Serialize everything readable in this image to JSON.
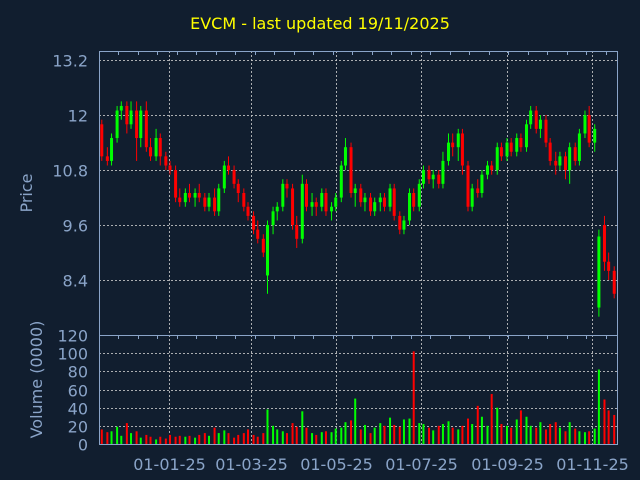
{
  "chart_data": {
    "type": "candlestick",
    "title": "EVCM - last updated 19/11/2025",
    "price_panel": {
      "ylabel": "Price",
      "yticks": [
        "13.2",
        "12",
        "10.8",
        "9.6",
        "8.4"
      ],
      "ylim": [
        7.2,
        13.4
      ],
      "grid": true
    },
    "volume_panel": {
      "ylabel": "Volume (0000)",
      "yticks": [
        "120",
        "100",
        "80",
        "60",
        "40",
        "20",
        "0"
      ],
      "ylim": [
        0,
        120
      ],
      "grid": true
    },
    "xlim": [
      "2024-11-12",
      "2025-11-19"
    ],
    "xticks": [
      {
        "date": "2025-01-01",
        "label": "01-01-25"
      },
      {
        "date": "2025-03-01",
        "label": "01-03-25"
      },
      {
        "date": "2025-05-01",
        "label": "01-05-25"
      },
      {
        "date": "2025-07-01",
        "label": "01-07-25"
      },
      {
        "date": "2025-09-01",
        "label": "01-09-25"
      },
      {
        "date": "2025-11-01",
        "label": "01-11-25"
      }
    ],
    "colors": {
      "up": "#00ff00",
      "down": "#ff0000",
      "background": "#111e2f",
      "axis": "#8aa4c8",
      "grid": "#c8c8c8",
      "title": "#ffff00"
    },
    "columns": [
      "date",
      "open",
      "high",
      "low",
      "close",
      "volume"
    ],
    "candles": [
      [
        "2024-11-14",
        11.8,
        11.9,
        11.0,
        11.1,
        16
      ],
      [
        "2024-11-18",
        11.1,
        11.3,
        10.9,
        11.0,
        13
      ],
      [
        "2024-11-21",
        11.0,
        11.6,
        10.9,
        11.5,
        14
      ],
      [
        "2024-11-25",
        11.5,
        12.2,
        11.4,
        12.1,
        19
      ],
      [
        "2024-11-28",
        12.1,
        12.3,
        11.9,
        12.2,
        9
      ],
      [
        "2024-12-02",
        12.2,
        12.3,
        11.6,
        11.8,
        23
      ],
      [
        "2024-12-05",
        11.8,
        12.3,
        11.7,
        12.1,
        12
      ],
      [
        "2024-12-09",
        12.1,
        12.3,
        11.0,
        11.5,
        14
      ],
      [
        "2024-12-12",
        11.5,
        12.2,
        11.3,
        12.1,
        7
      ],
      [
        "2024-12-16",
        12.1,
        12.3,
        11.2,
        11.3,
        10
      ],
      [
        "2024-12-19",
        11.3,
        11.5,
        11.0,
        11.1,
        8
      ],
      [
        "2024-12-23",
        11.1,
        11.7,
        11.0,
        11.5,
        5
      ],
      [
        "2024-12-26",
        11.5,
        11.6,
        10.9,
        11.1,
        8
      ],
      [
        "2024-12-30",
        11.1,
        11.2,
        10.8,
        10.9,
        6
      ],
      [
        "2025-01-02",
        10.9,
        11.0,
        10.7,
        10.8,
        10
      ],
      [
        "2025-01-06",
        10.8,
        10.9,
        10.1,
        10.2,
        8
      ],
      [
        "2025-01-09",
        10.2,
        10.4,
        10.0,
        10.1,
        9
      ],
      [
        "2025-01-13",
        10.1,
        10.4,
        10.0,
        10.3,
        8
      ],
      [
        "2025-01-16",
        10.3,
        10.5,
        10.1,
        10.2,
        9
      ],
      [
        "2025-01-20",
        10.2,
        10.4,
        10.0,
        10.3,
        7
      ],
      [
        "2025-01-23",
        10.3,
        10.5,
        10.1,
        10.2,
        10
      ],
      [
        "2025-01-27",
        10.2,
        10.3,
        9.9,
        10.0,
        12
      ],
      [
        "2025-01-30",
        10.0,
        10.3,
        9.9,
        10.2,
        9
      ],
      [
        "2025-02-03",
        10.2,
        10.4,
        9.8,
        9.9,
        18
      ],
      [
        "2025-02-06",
        9.9,
        10.5,
        9.8,
        10.4,
        12
      ],
      [
        "2025-02-10",
        10.4,
        11.0,
        10.3,
        10.9,
        15
      ],
      [
        "2025-02-13",
        10.9,
        11.1,
        10.7,
        10.8,
        12
      ],
      [
        "2025-02-17",
        10.8,
        10.9,
        10.4,
        10.5,
        7
      ],
      [
        "2025-02-20",
        10.5,
        10.6,
        10.1,
        10.3,
        10
      ],
      [
        "2025-02-24",
        10.3,
        10.4,
        9.9,
        10.0,
        12
      ],
      [
        "2025-02-27",
        10.0,
        10.1,
        9.7,
        9.8,
        16
      ],
      [
        "2025-03-03",
        9.8,
        9.9,
        9.4,
        9.5,
        10
      ],
      [
        "2025-03-06",
        9.5,
        9.7,
        9.2,
        9.3,
        8
      ],
      [
        "2025-03-10",
        9.3,
        9.4,
        8.9,
        9.0,
        12
      ],
      [
        "2025-03-13",
        8.5,
        9.7,
        8.1,
        9.6,
        38
      ],
      [
        "2025-03-17",
        9.6,
        10.0,
        9.4,
        9.9,
        20
      ],
      [
        "2025-03-20",
        9.9,
        10.1,
        9.7,
        10.0,
        16
      ],
      [
        "2025-03-24",
        10.0,
        10.6,
        9.9,
        10.5,
        14
      ],
      [
        "2025-03-27",
        10.5,
        10.6,
        10.2,
        10.4,
        12
      ],
      [
        "2025-03-31",
        10.4,
        10.5,
        9.5,
        9.6,
        23
      ],
      [
        "2025-04-03",
        9.6,
        9.8,
        9.1,
        9.3,
        19
      ],
      [
        "2025-04-07",
        9.3,
        10.7,
        9.2,
        10.5,
        36
      ],
      [
        "2025-04-10",
        10.5,
        10.6,
        9.9,
        10.0,
        18
      ],
      [
        "2025-04-14",
        10.0,
        10.3,
        9.8,
        10.1,
        12
      ],
      [
        "2025-04-17",
        10.1,
        10.2,
        9.8,
        10.0,
        10
      ],
      [
        "2025-04-21",
        10.0,
        10.4,
        9.9,
        10.3,
        13
      ],
      [
        "2025-04-24",
        10.3,
        10.4,
        9.8,
        9.9,
        14
      ],
      [
        "2025-04-28",
        9.9,
        10.1,
        9.7,
        10.0,
        13
      ],
      [
        "2025-05-01",
        10.0,
        10.3,
        9.9,
        10.2,
        17
      ],
      [
        "2025-05-05",
        10.2,
        11.0,
        10.1,
        10.9,
        18
      ],
      [
        "2025-05-08",
        10.9,
        11.5,
        10.8,
        11.3,
        24
      ],
      [
        "2025-05-12",
        11.3,
        11.4,
        10.2,
        10.3,
        26
      ],
      [
        "2025-05-15",
        10.3,
        10.5,
        10.0,
        10.4,
        50
      ],
      [
        "2025-05-19",
        10.4,
        10.5,
        10.0,
        10.1,
        16
      ],
      [
        "2025-05-22",
        10.1,
        10.3,
        9.9,
        10.2,
        21
      ],
      [
        "2025-05-26",
        10.2,
        10.3,
        9.8,
        9.9,
        12
      ],
      [
        "2025-05-29",
        9.9,
        10.2,
        9.8,
        10.1,
        18
      ],
      [
        "2025-06-02",
        10.1,
        10.3,
        9.9,
        10.2,
        23
      ],
      [
        "2025-06-05",
        10.2,
        10.3,
        9.9,
        10.0,
        20
      ],
      [
        "2025-06-09",
        10.0,
        10.5,
        9.9,
        10.4,
        29
      ],
      [
        "2025-06-12",
        10.4,
        10.5,
        9.7,
        9.8,
        21
      ],
      [
        "2025-06-16",
        9.8,
        9.9,
        9.4,
        9.5,
        19
      ],
      [
        "2025-06-19",
        9.5,
        9.8,
        9.4,
        9.7,
        27
      ],
      [
        "2025-06-23",
        9.7,
        10.4,
        9.6,
        10.3,
        28
      ],
      [
        "2025-06-26",
        10.3,
        10.4,
        9.9,
        10.0,
        102
      ],
      [
        "2025-06-30",
        10.0,
        10.6,
        9.9,
        10.5,
        23
      ],
      [
        "2025-07-03",
        10.5,
        10.9,
        10.4,
        10.8,
        22
      ],
      [
        "2025-07-07",
        10.8,
        10.9,
        10.5,
        10.6,
        18
      ],
      [
        "2025-07-10",
        10.6,
        10.8,
        10.4,
        10.7,
        15
      ],
      [
        "2025-07-14",
        10.7,
        10.8,
        10.4,
        10.5,
        20
      ],
      [
        "2025-07-17",
        10.5,
        11.2,
        10.4,
        11.0,
        22
      ],
      [
        "2025-07-21",
        11.0,
        11.6,
        10.9,
        11.4,
        25
      ],
      [
        "2025-07-24",
        11.4,
        11.6,
        11.1,
        11.3,
        18
      ],
      [
        "2025-07-28",
        11.3,
        11.7,
        11.0,
        11.6,
        16
      ],
      [
        "2025-07-31",
        11.6,
        11.7,
        10.7,
        10.9,
        20
      ],
      [
        "2025-08-04",
        10.9,
        11.0,
        9.9,
        10.0,
        28
      ],
      [
        "2025-08-07",
        10.0,
        10.5,
        9.9,
        10.4,
        22
      ],
      [
        "2025-08-11",
        10.4,
        10.6,
        10.2,
        10.3,
        42
      ],
      [
        "2025-08-14",
        10.3,
        10.8,
        10.2,
        10.7,
        30
      ],
      [
        "2025-08-18",
        10.7,
        11.0,
        10.6,
        10.9,
        20
      ],
      [
        "2025-08-21",
        10.9,
        11.0,
        10.7,
        10.8,
        55
      ],
      [
        "2025-08-25",
        10.8,
        11.4,
        10.7,
        11.3,
        40
      ],
      [
        "2025-08-28",
        11.3,
        11.4,
        11.0,
        11.1,
        22
      ],
      [
        "2025-09-01",
        11.1,
        11.5,
        11.0,
        11.4,
        20
      ],
      [
        "2025-09-04",
        11.4,
        11.5,
        11.1,
        11.2,
        18
      ],
      [
        "2025-09-08",
        11.2,
        11.6,
        11.1,
        11.5,
        27
      ],
      [
        "2025-09-11",
        11.5,
        11.6,
        11.2,
        11.3,
        37
      ],
      [
        "2025-09-15",
        11.3,
        11.9,
        11.2,
        11.8,
        30
      ],
      [
        "2025-09-18",
        11.8,
        12.2,
        11.7,
        12.1,
        20
      ],
      [
        "2025-09-22",
        12.1,
        12.2,
        11.6,
        11.7,
        18
      ],
      [
        "2025-09-25",
        11.7,
        12.0,
        11.5,
        11.9,
        24
      ],
      [
        "2025-09-29",
        11.9,
        12.0,
        11.3,
        11.4,
        16
      ],
      [
        "2025-10-02",
        11.4,
        11.5,
        10.9,
        11.0,
        22
      ],
      [
        "2025-10-06",
        11.0,
        11.2,
        10.7,
        10.9,
        24
      ],
      [
        "2025-10-09",
        10.9,
        11.2,
        10.8,
        11.1,
        18
      ],
      [
        "2025-10-13",
        11.1,
        11.2,
        10.6,
        10.8,
        14
      ],
      [
        "2025-10-16",
        10.8,
        11.4,
        10.5,
        11.3,
        24
      ],
      [
        "2025-10-20",
        11.3,
        11.4,
        10.9,
        11.0,
        17
      ],
      [
        "2025-10-23",
        11.0,
        11.7,
        10.9,
        11.6,
        14
      ],
      [
        "2025-10-27",
        11.6,
        12.1,
        11.5,
        12.0,
        13
      ],
      [
        "2025-10-30",
        12.0,
        12.2,
        11.3,
        11.4,
        14
      ],
      [
        "2025-11-03",
        11.4,
        11.8,
        11.2,
        11.7,
        17
      ],
      [
        "2025-11-06",
        7.8,
        9.5,
        7.6,
        9.35,
        82
      ],
      [
        "2025-11-10",
        9.6,
        9.8,
        8.6,
        8.8,
        49
      ],
      [
        "2025-11-13",
        8.8,
        9.0,
        8.4,
        8.6,
        37
      ],
      [
        "2025-11-17",
        8.6,
        8.7,
        8.0,
        8.1,
        32
      ]
    ]
  }
}
